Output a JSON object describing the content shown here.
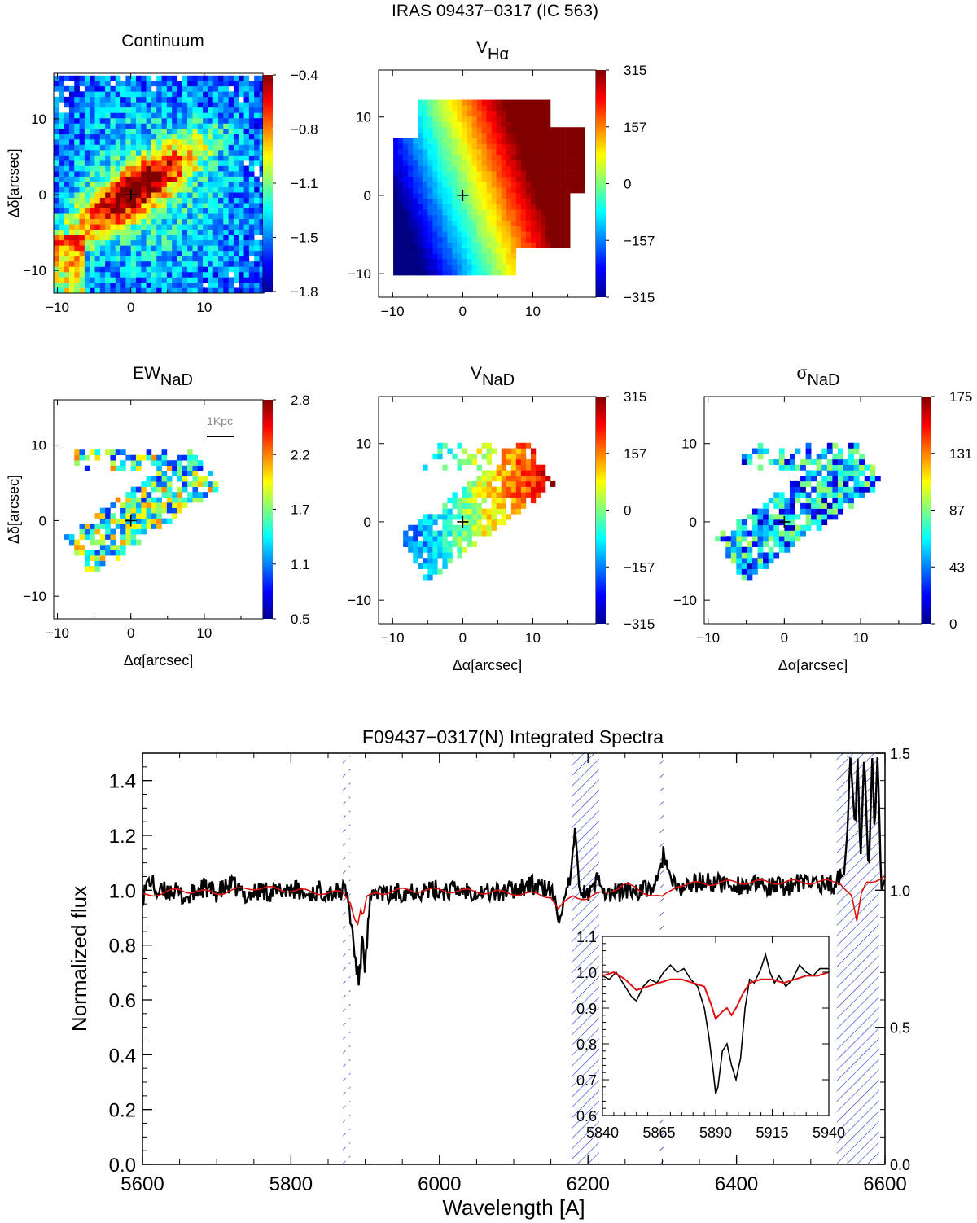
{
  "figure_title": "IRAS 09437−0317 (IC 563)",
  "colors": {
    "spectrum": "#000000",
    "model": "#dd1111",
    "hatch": "#2233cc",
    "axis": "#000000",
    "background": "#ffffff"
  },
  "chart_data": [
    {
      "id": "continuum",
      "type": "heatmap",
      "title": "Continuum",
      "title_sub": "",
      "xlabel": "",
      "ylabel": "Δδ[arcsec]",
      "xticks": [
        "−10",
        "0",
        "10"
      ],
      "yticks": [
        "−10",
        "0",
        "10"
      ],
      "xlim": [
        -10.5,
        18
      ],
      "ylim": [
        -13,
        16
      ],
      "colorbar_ticks": [
        "−0.4",
        "−0.8",
        "−1.1",
        "−1.5",
        "−1.8"
      ],
      "colorbar_range": [
        -1.8,
        -0.4
      ],
      "center_marker": [
        0,
        0
      ]
    },
    {
      "id": "v-halpha",
      "type": "heatmap",
      "title": "V",
      "title_sub": "Hα",
      "xlabel": "",
      "ylabel": "",
      "xticks": [
        "−10",
        "0",
        "10"
      ],
      "yticks": [
        "−10",
        "0",
        "10"
      ],
      "xlim": [
        -12,
        19
      ],
      "ylim": [
        -13,
        16
      ],
      "colorbar_ticks": [
        "315",
        "157",
        "0",
        "−157",
        "−315"
      ],
      "colorbar_range": [
        -315,
        315
      ],
      "center_marker": [
        0,
        0
      ]
    },
    {
      "id": "ew-nad",
      "type": "heatmap",
      "title": "EW",
      "title_sub": "NaD",
      "xlabel": "Δα[arcsec]",
      "ylabel": "Δδ[arcsec]",
      "xticks": [
        "−10",
        "0",
        "10"
      ],
      "yticks": [
        "−10",
        "0",
        "10"
      ],
      "xlim": [
        -10.5,
        18
      ],
      "ylim": [
        -13,
        16
      ],
      "colorbar_ticks": [
        "2.8",
        "2.2",
        "1.7",
        "1.1",
        "0.5"
      ],
      "colorbar_range": [
        0.5,
        2.8
      ],
      "center_marker": [
        0,
        0
      ],
      "scale_bar_label": "1Kpc"
    },
    {
      "id": "v-nad",
      "type": "heatmap",
      "title": "V",
      "title_sub": "NaD",
      "xlabel": "Δα[arcsec]",
      "ylabel": "",
      "xticks": [
        "−10",
        "0",
        "10"
      ],
      "yticks": [
        "−10",
        "0",
        "10"
      ],
      "xlim": [
        -12,
        19
      ],
      "ylim": [
        -13,
        16
      ],
      "colorbar_ticks": [
        "315",
        "157",
        "0",
        "−157",
        "−315"
      ],
      "colorbar_range": [
        -315,
        315
      ],
      "center_marker": [
        0,
        0
      ]
    },
    {
      "id": "sigma-nad",
      "type": "heatmap",
      "title": "σ",
      "title_sub": "NaD",
      "xlabel": "Δα[arcsec]",
      "ylabel": "",
      "xticks": [
        "−10",
        "0",
        "10"
      ],
      "yticks": [
        "−10",
        "0",
        "10"
      ],
      "xlim": [
        -10.5,
        18
      ],
      "ylim": [
        -13,
        16
      ],
      "colorbar_ticks": [
        "175",
        "131",
        "87",
        "43",
        "0"
      ],
      "colorbar_range": [
        0,
        175
      ],
      "center_marker": [
        0,
        0
      ]
    },
    {
      "id": "integrated-spectrum",
      "type": "line",
      "title": "F09437−0317(N) Integrated Spectra",
      "xlabel": "Wavelength [A]",
      "ylabel": "Normalized flux",
      "xlim": [
        5600,
        6600
      ],
      "ylim": [
        0,
        1.5
      ],
      "xticks": [
        5600,
        5800,
        6000,
        6200,
        6400,
        6600
      ],
      "yticks": [
        0.0,
        0.2,
        0.4,
        0.6,
        0.8,
        1.0,
        1.2,
        1.4
      ],
      "yticks_right": [
        0.0,
        0.5,
        1.0,
        1.5
      ],
      "masked_regions": [
        [
          5870,
          5880
        ],
        [
          6178,
          6215
        ],
        [
          6297,
          6306
        ],
        [
          6535,
          6592
        ]
      ],
      "series": [
        {
          "name": "observed",
          "color": "#000000",
          "x": [
            5600,
            5610,
            5620,
            5640,
            5660,
            5680,
            5700,
            5720,
            5740,
            5760,
            5780,
            5800,
            5820,
            5840,
            5860,
            5875,
            5882,
            5888,
            5892,
            5896,
            5900,
            5906,
            5915,
            5930,
            5960,
            6000,
            6040,
            6080,
            6120,
            6150,
            6160,
            6170,
            6178,
            6182,
            6190,
            6200,
            6210,
            6215,
            6225,
            6250,
            6280,
            6295,
            6302,
            6310,
            6320,
            6350,
            6400,
            6450,
            6500,
            6530,
            6545,
            6550,
            6553,
            6560,
            6563,
            6567,
            6572,
            6578,
            6583,
            6586,
            6590,
            6595,
            6600
          ],
          "y": [
            0.98,
            1.04,
            0.99,
            1.0,
            0.97,
            1.01,
            0.99,
            1.02,
            0.98,
            1.0,
            0.99,
            1.01,
            0.98,
            1.0,
            0.99,
            1.0,
            0.86,
            0.72,
            0.66,
            0.84,
            0.72,
            0.94,
            1.0,
            0.98,
            1.0,
            1.0,
            1.0,
            0.99,
            1.02,
            1.0,
            0.91,
            0.96,
            1.07,
            1.2,
            1.0,
            0.98,
            1.02,
            1.06,
            0.98,
            1.0,
            1.0,
            1.03,
            1.15,
            1.04,
            1.0,
            1.03,
            1.02,
            1.01,
            1.03,
            1.02,
            1.06,
            1.24,
            1.5,
            1.22,
            1.5,
            1.1,
            1.5,
            1.05,
            1.5,
            1.2,
            1.5,
            1.0,
            1.04
          ]
        },
        {
          "name": "model",
          "color": "#dd1111",
          "x": [
            5600,
            5650,
            5700,
            5750,
            5800,
            5850,
            5870,
            5880,
            5886,
            5890,
            5894,
            5897,
            5902,
            5915,
            5950,
            6000,
            6100,
            6150,
            6160,
            6180,
            6200,
            6250,
            6300,
            6320,
            6400,
            6500,
            6540,
            6555,
            6562,
            6568,
            6575,
            6600
          ],
          "y": [
            0.98,
            1.0,
            0.99,
            1.01,
            1.0,
            0.99,
            0.99,
            0.96,
            0.9,
            0.88,
            0.93,
            0.9,
            0.97,
            0.99,
            1.0,
            1.0,
            0.99,
            0.98,
            0.93,
            0.98,
            0.97,
            1.02,
            0.97,
            1.02,
            1.03,
            1.03,
            1.03,
            0.98,
            0.88,
            0.98,
            1.03,
            1.05
          ]
        }
      ]
    },
    {
      "id": "nad-inset",
      "type": "line",
      "title": "",
      "xlim": [
        5840,
        5940
      ],
      "ylim": [
        0.6,
        1.1
      ],
      "xticks": [
        5840,
        5865,
        5890,
        5915,
        5940
      ],
      "yticks": [
        0.6,
        0.7,
        0.8,
        0.9,
        1.0,
        1.1
      ],
      "series": [
        {
          "name": "observed",
          "color": "#000000",
          "x": [
            5840,
            5843,
            5846,
            5850,
            5853,
            5855,
            5858,
            5861,
            5864,
            5867,
            5870,
            5873,
            5876,
            5879,
            5882,
            5885,
            5887,
            5889,
            5890,
            5891,
            5893,
            5895,
            5897,
            5899,
            5901,
            5903,
            5905,
            5907,
            5910,
            5912,
            5914,
            5916,
            5918,
            5921,
            5924,
            5927,
            5930,
            5933,
            5936,
            5940
          ],
          "y": [
            0.99,
            0.98,
            1.0,
            0.96,
            0.93,
            0.92,
            0.96,
            0.98,
            0.97,
            1.0,
            1.02,
            1.0,
            1.01,
            0.98,
            0.96,
            0.9,
            0.82,
            0.72,
            0.66,
            0.68,
            0.78,
            0.8,
            0.74,
            0.7,
            0.76,
            0.9,
            0.98,
            0.97,
            1.01,
            1.05,
            1.0,
            0.97,
            0.99,
            0.96,
            0.98,
            1.02,
            1.0,
            0.99,
            1.01,
            1.01
          ]
        },
        {
          "name": "model",
          "color": "#dd1111",
          "x": [
            5840,
            5845,
            5850,
            5855,
            5860,
            5865,
            5870,
            5875,
            5880,
            5885,
            5888,
            5890,
            5893,
            5895,
            5897,
            5899,
            5902,
            5905,
            5910,
            5915,
            5920,
            5925,
            5930,
            5935,
            5940
          ],
          "y": [
            0.99,
            1.0,
            0.98,
            0.95,
            0.96,
            0.97,
            0.98,
            0.98,
            0.97,
            0.96,
            0.91,
            0.87,
            0.89,
            0.9,
            0.88,
            0.9,
            0.94,
            0.97,
            0.98,
            0.98,
            0.97,
            0.98,
            0.99,
            0.99,
            1.0
          ]
        }
      ]
    }
  ]
}
